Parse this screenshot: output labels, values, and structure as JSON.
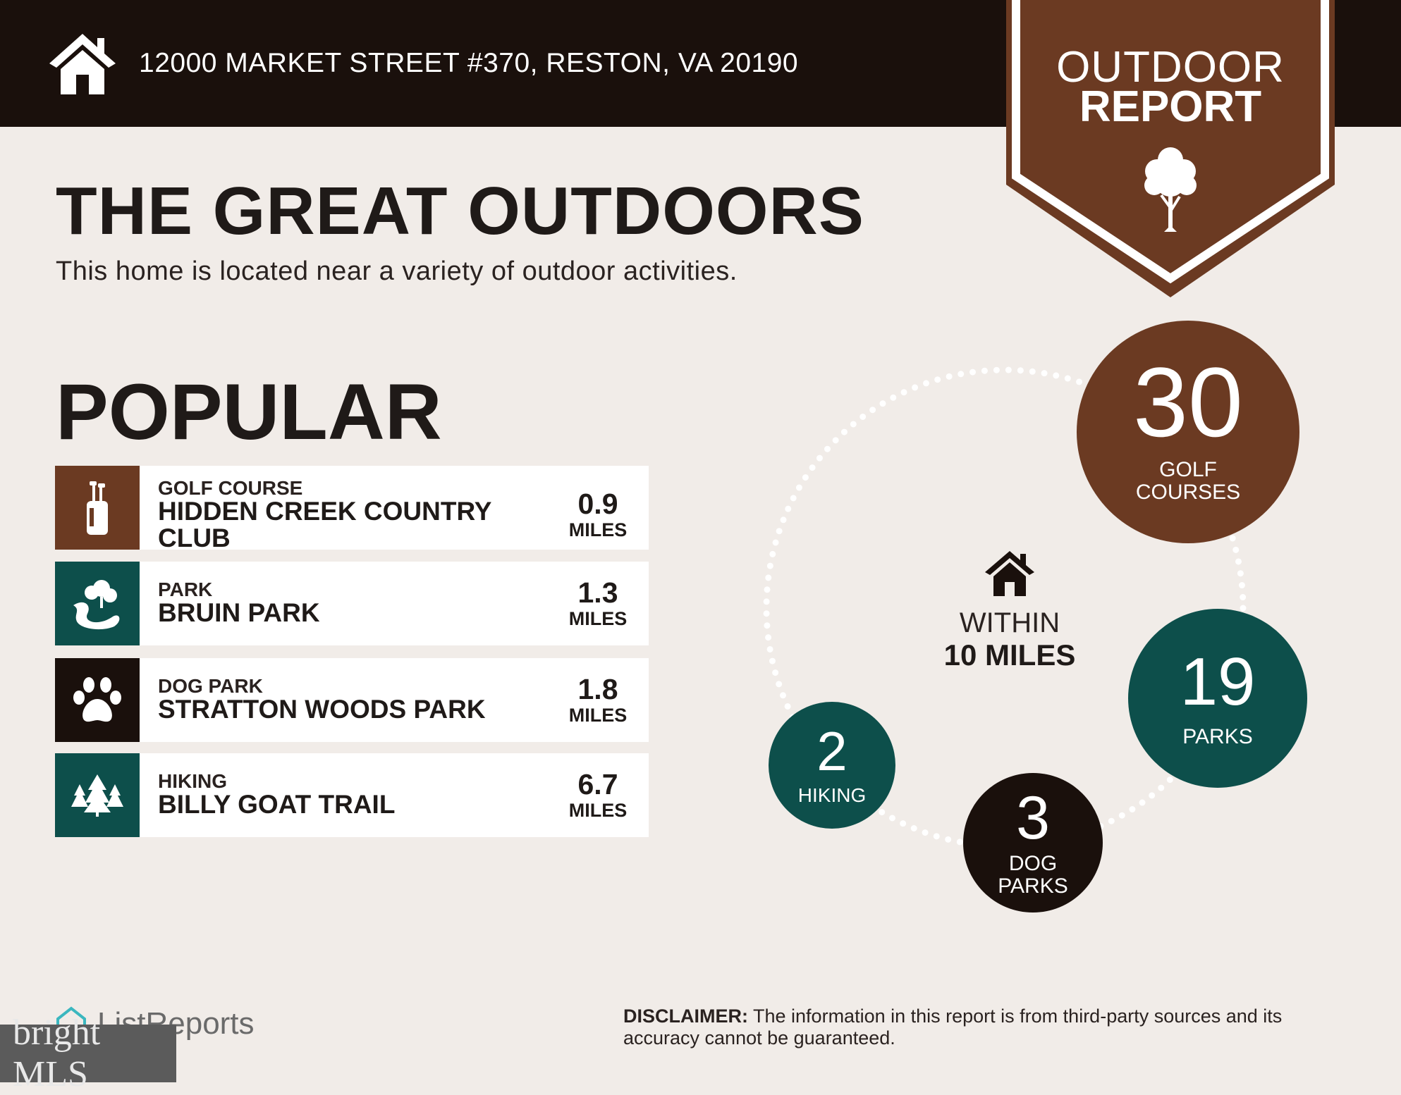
{
  "header": {
    "address": "12000 MARKET STREET #370, RESTON, VA 20190",
    "icon": "home-icon"
  },
  "banner": {
    "line1": "OUTDOOR",
    "line2": "REPORT",
    "icon": "tree-icon",
    "color": "#6b3a22"
  },
  "title": "THE GREAT OUTDOORS",
  "subtitle": "This home is located near a variety of outdoor activities.",
  "popular": {
    "heading": "POPULAR",
    "items": [
      {
        "category": "GOLF COURSE",
        "name": "HIDDEN CREEK COUNTRY CLUB",
        "distance": "0.9",
        "unit": "MILES",
        "icon": "golf-bag-icon",
        "color": "#6b3a22"
      },
      {
        "category": "PARK",
        "name": "BRUIN PARK",
        "distance": "1.3",
        "unit": "MILES",
        "icon": "park-icon",
        "color": "#0d4f4b"
      },
      {
        "category": "DOG PARK",
        "name": "STRATTON WOODS PARK",
        "distance": "1.8",
        "unit": "MILES",
        "icon": "paw-icon",
        "color": "#1a100c"
      },
      {
        "category": "HIKING",
        "name": "BILLY GOAT TRAIL",
        "distance": "6.7",
        "unit": "MILES",
        "icon": "pine-trees-icon",
        "color": "#0d4f4b"
      }
    ]
  },
  "summary": {
    "center_line1": "WITHIN",
    "center_line2": "10 MILES",
    "golf": {
      "count": "30",
      "label1": "GOLF",
      "label2": "COURSES",
      "color": "#6b3a22"
    },
    "parks": {
      "count": "19",
      "label": "PARKS",
      "color": "#0d4f4b"
    },
    "dog": {
      "count": "3",
      "label1": "DOG",
      "label2": "PARKS",
      "color": "#1a100c"
    },
    "hiking": {
      "count": "2",
      "label": "HIKING",
      "color": "#0d4f4b"
    }
  },
  "footer": {
    "brand": "ListReports",
    "overlay_brand": "bright MLS",
    "disclaimer_label": "DISCLAIMER:",
    "disclaimer_text": " The information in this report is from third-party sources and its accuracy cannot be guaranteed."
  }
}
